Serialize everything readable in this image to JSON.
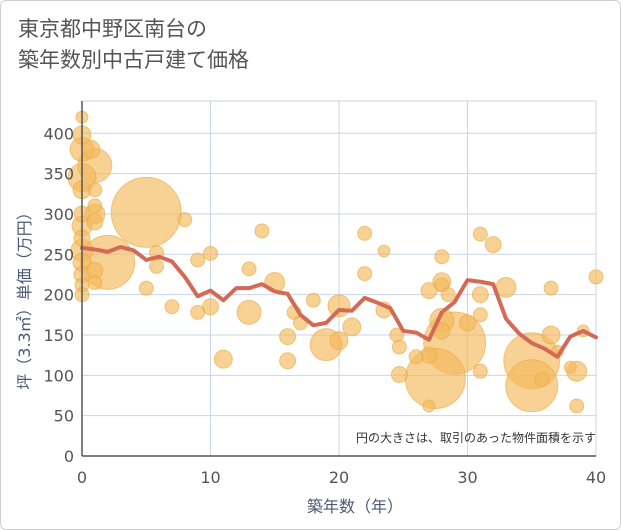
{
  "title_lines": [
    "東京都中野区南台の",
    "築年数別中古戸建て価格"
  ],
  "colors": {
    "bubble_fill": "#f5b95a",
    "bubble_stroke": "#e8a840",
    "line": "#d36a55",
    "grid": "#c8d6e5",
    "plot_background": "#ffffff"
  },
  "chart_data": {
    "type": "scatter",
    "xlabel": "築年数（年）",
    "ylabel": "坪（3.3㎡）単価（万円）",
    "xlim": [
      0,
      40
    ],
    "ylim": [
      0,
      440
    ],
    "x_ticks": [
      0,
      10,
      20,
      30,
      40
    ],
    "y_ticks": [
      0,
      50,
      100,
      150,
      200,
      250,
      300,
      350,
      400
    ],
    "grid": true,
    "annotation": "円の大きさは、取引のあった物件面積を示す",
    "bubbles": [
      {
        "x": 0,
        "y": 420,
        "r": 6
      },
      {
        "x": 0,
        "y": 398,
        "r": 9
      },
      {
        "x": 0,
        "y": 380,
        "r": 12
      },
      {
        "x": 0,
        "y": 345,
        "r": 14
      },
      {
        "x": 0,
        "y": 330,
        "r": 9
      },
      {
        "x": 0,
        "y": 300,
        "r": 8
      },
      {
        "x": 0,
        "y": 285,
        "r": 10
      },
      {
        "x": 0,
        "y": 270,
        "r": 8
      },
      {
        "x": 0,
        "y": 255,
        "r": 11
      },
      {
        "x": 0,
        "y": 240,
        "r": 9
      },
      {
        "x": 0,
        "y": 225,
        "r": 8
      },
      {
        "x": 0,
        "y": 212,
        "r": 7
      },
      {
        "x": 0,
        "y": 200,
        "r": 7
      },
      {
        "x": 0.7,
        "y": 380,
        "r": 9
      },
      {
        "x": 1,
        "y": 360,
        "r": 17
      },
      {
        "x": 1,
        "y": 330,
        "r": 7
      },
      {
        "x": 1,
        "y": 310,
        "r": 7
      },
      {
        "x": 1,
        "y": 300,
        "r": 10
      },
      {
        "x": 1,
        "y": 290,
        "r": 8
      },
      {
        "x": 1,
        "y": 230,
        "r": 8
      },
      {
        "x": 1,
        "y": 215,
        "r": 7
      },
      {
        "x": 2,
        "y": 240,
        "r": 27
      },
      {
        "x": 5,
        "y": 302,
        "r": 35
      },
      {
        "x": 5,
        "y": 208,
        "r": 7
      },
      {
        "x": 5.8,
        "y": 252,
        "r": 7
      },
      {
        "x": 5.8,
        "y": 235,
        "r": 7
      },
      {
        "x": 7,
        "y": 185,
        "r": 7
      },
      {
        "x": 8,
        "y": 293,
        "r": 7
      },
      {
        "x": 9,
        "y": 243,
        "r": 7
      },
      {
        "x": 9,
        "y": 178,
        "r": 7
      },
      {
        "x": 10,
        "y": 251,
        "r": 7
      },
      {
        "x": 10,
        "y": 185,
        "r": 8
      },
      {
        "x": 11,
        "y": 120,
        "r": 9
      },
      {
        "x": 13,
        "y": 232,
        "r": 7
      },
      {
        "x": 13,
        "y": 178,
        "r": 12
      },
      {
        "x": 14,
        "y": 279,
        "r": 7
      },
      {
        "x": 15,
        "y": 215,
        "r": 10
      },
      {
        "x": 16,
        "y": 148,
        "r": 8
      },
      {
        "x": 16,
        "y": 118,
        "r": 8
      },
      {
        "x": 16.5,
        "y": 178,
        "r": 7
      },
      {
        "x": 17,
        "y": 165,
        "r": 7
      },
      {
        "x": 18,
        "y": 193,
        "r": 7
      },
      {
        "x": 19,
        "y": 138,
        "r": 16
      },
      {
        "x": 20,
        "y": 186,
        "r": 11
      },
      {
        "x": 20,
        "y": 143,
        "r": 9
      },
      {
        "x": 21,
        "y": 160,
        "r": 9
      },
      {
        "x": 22,
        "y": 276,
        "r": 7
      },
      {
        "x": 22,
        "y": 226,
        "r": 7
      },
      {
        "x": 23.5,
        "y": 254,
        "r": 6
      },
      {
        "x": 23.5,
        "y": 181,
        "r": 8
      },
      {
        "x": 24.5,
        "y": 150,
        "r": 7
      },
      {
        "x": 24.7,
        "y": 135,
        "r": 7
      },
      {
        "x": 24.7,
        "y": 101,
        "r": 8
      },
      {
        "x": 26,
        "y": 123,
        "r": 7
      },
      {
        "x": 27,
        "y": 205,
        "r": 8
      },
      {
        "x": 27,
        "y": 125,
        "r": 8
      },
      {
        "x": 27,
        "y": 62,
        "r": 6
      },
      {
        "x": 27.5,
        "y": 96,
        "r": 30
      },
      {
        "x": 28,
        "y": 247,
        "r": 7
      },
      {
        "x": 28,
        "y": 216,
        "r": 9
      },
      {
        "x": 28,
        "y": 212,
        "r": 7
      },
      {
        "x": 28,
        "y": 168,
        "r": 12
      },
      {
        "x": 28,
        "y": 155,
        "r": 8
      },
      {
        "x": 28.5,
        "y": 200,
        "r": 7
      },
      {
        "x": 29,
        "y": 140,
        "r": 31
      },
      {
        "x": 30,
        "y": 165,
        "r": 8
      },
      {
        "x": 31,
        "y": 275,
        "r": 7
      },
      {
        "x": 31,
        "y": 200,
        "r": 8
      },
      {
        "x": 31,
        "y": 175,
        "r": 7
      },
      {
        "x": 31,
        "y": 105,
        "r": 7
      },
      {
        "x": 32,
        "y": 262,
        "r": 8
      },
      {
        "x": 33,
        "y": 209,
        "r": 10
      },
      {
        "x": 35,
        "y": 118,
        "r": 28
      },
      {
        "x": 35,
        "y": 87,
        "r": 26
      },
      {
        "x": 35.8,
        "y": 95,
        "r": 7
      },
      {
        "x": 36.5,
        "y": 208,
        "r": 7
      },
      {
        "x": 36.5,
        "y": 150,
        "r": 9
      },
      {
        "x": 37,
        "y": 130,
        "r": 6
      },
      {
        "x": 38,
        "y": 110,
        "r": 6
      },
      {
        "x": 38.5,
        "y": 105,
        "r": 10
      },
      {
        "x": 38.5,
        "y": 62,
        "r": 7
      },
      {
        "x": 39,
        "y": 155,
        "r": 6
      },
      {
        "x": 40,
        "y": 222,
        "r": 7
      }
    ],
    "series": [
      {
        "type": "line",
        "x": [
          0,
          1,
          2,
          3,
          4,
          5,
          6,
          7,
          8,
          9,
          10,
          11,
          12,
          13,
          14,
          15,
          16,
          17,
          18,
          19,
          20,
          21,
          22,
          23,
          24,
          25,
          26,
          27,
          28,
          29,
          30,
          31,
          32,
          33,
          34,
          35,
          36,
          37,
          38,
          39,
          40
        ],
        "values": [
          258,
          256,
          253,
          259,
          255,
          243,
          247,
          241,
          222,
          198,
          205,
          193,
          208,
          208,
          213,
          204,
          201,
          175,
          162,
          165,
          181,
          180,
          196,
          190,
          183,
          155,
          153,
          144,
          178,
          191,
          218,
          216,
          213,
          170,
          152,
          140,
          133,
          123,
          148,
          155,
          147
        ]
      }
    ]
  }
}
